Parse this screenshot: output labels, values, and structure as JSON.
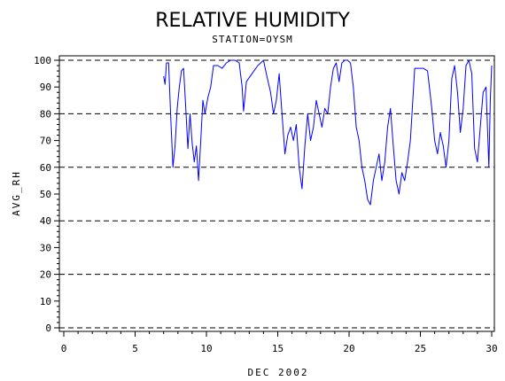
{
  "chart_data": {
    "type": "line",
    "title": "RELATIVE HUMIDITY",
    "subtitle": "STATION=OYSM",
    "xlabel": "DEC 2002",
    "ylabel": "AVG_RH",
    "xlim": [
      0,
      30
    ],
    "ylim": [
      0,
      100
    ],
    "x_ticks": [
      0,
      5,
      10,
      15,
      20,
      25,
      30
    ],
    "y_ticks": [
      0,
      10,
      20,
      30,
      40,
      50,
      60,
      70,
      80,
      90,
      100
    ],
    "grid_y": [
      0,
      20,
      40,
      60,
      80,
      100
    ],
    "grid_style": "dashed",
    "line_color": "#0000ff",
    "series": [
      {
        "values": [
          [
            7.0,
            94
          ],
          [
            7.1,
            91
          ],
          [
            7.2,
            99
          ],
          [
            7.35,
            99
          ],
          [
            7.5,
            78
          ],
          [
            7.65,
            60
          ],
          [
            7.8,
            68
          ],
          [
            7.95,
            82
          ],
          [
            8.1,
            90
          ],
          [
            8.25,
            96
          ],
          [
            8.4,
            97
          ],
          [
            8.55,
            82
          ],
          [
            8.7,
            67
          ],
          [
            8.85,
            80
          ],
          [
            9.0,
            69
          ],
          [
            9.15,
            62
          ],
          [
            9.3,
            68
          ],
          [
            9.45,
            55
          ],
          [
            9.6,
            70
          ],
          [
            9.75,
            85
          ],
          [
            9.9,
            80
          ],
          [
            10.1,
            86
          ],
          [
            10.3,
            90
          ],
          [
            10.5,
            98
          ],
          [
            10.8,
            98
          ],
          [
            11.1,
            97
          ],
          [
            11.4,
            99
          ],
          [
            11.7,
            100
          ],
          [
            12.0,
            100
          ],
          [
            12.3,
            99
          ],
          [
            12.5,
            90
          ],
          [
            12.6,
            81
          ],
          [
            12.8,
            92
          ],
          [
            13.2,
            95
          ],
          [
            13.6,
            98
          ],
          [
            14.0,
            100
          ],
          [
            14.2,
            95
          ],
          [
            14.5,
            88
          ],
          [
            14.7,
            80
          ],
          [
            14.9,
            85
          ],
          [
            15.1,
            95
          ],
          [
            15.3,
            80
          ],
          [
            15.5,
            65
          ],
          [
            15.7,
            72
          ],
          [
            15.9,
            75
          ],
          [
            16.1,
            70
          ],
          [
            16.3,
            76
          ],
          [
            16.5,
            60
          ],
          [
            16.7,
            52
          ],
          [
            16.9,
            68
          ],
          [
            17.1,
            80
          ],
          [
            17.3,
            70
          ],
          [
            17.5,
            75
          ],
          [
            17.7,
            85
          ],
          [
            17.9,
            80
          ],
          [
            18.1,
            75
          ],
          [
            18.3,
            82
          ],
          [
            18.5,
            80
          ],
          [
            18.7,
            90
          ],
          [
            18.9,
            97
          ],
          [
            19.1,
            99
          ],
          [
            19.3,
            92
          ],
          [
            19.5,
            99
          ],
          [
            19.7,
            100
          ],
          [
            19.9,
            100
          ],
          [
            20.1,
            99
          ],
          [
            20.3,
            90
          ],
          [
            20.5,
            75
          ],
          [
            20.7,
            70
          ],
          [
            20.9,
            60
          ],
          [
            21.1,
            55
          ],
          [
            21.3,
            48
          ],
          [
            21.5,
            46
          ],
          [
            21.7,
            55
          ],
          [
            21.9,
            60
          ],
          [
            22.1,
            65
          ],
          [
            22.3,
            55
          ],
          [
            22.5,
            62
          ],
          [
            22.7,
            75
          ],
          [
            22.9,
            82
          ],
          [
            23.1,
            68
          ],
          [
            23.3,
            55
          ],
          [
            23.5,
            50
          ],
          [
            23.7,
            58
          ],
          [
            23.9,
            55
          ],
          [
            24.1,
            62
          ],
          [
            24.3,
            70
          ],
          [
            24.6,
            97
          ],
          [
            24.9,
            97
          ],
          [
            25.2,
            97
          ],
          [
            25.5,
            96
          ],
          [
            25.8,
            82
          ],
          [
            26.0,
            70
          ],
          [
            26.2,
            65
          ],
          [
            26.4,
            73
          ],
          [
            26.6,
            68
          ],
          [
            26.8,
            60
          ],
          [
            27.0,
            70
          ],
          [
            27.2,
            93
          ],
          [
            27.4,
            98
          ],
          [
            27.6,
            88
          ],
          [
            27.8,
            73
          ],
          [
            28.0,
            82
          ],
          [
            28.2,
            98
          ],
          [
            28.4,
            100
          ],
          [
            28.6,
            95
          ],
          [
            28.8,
            67
          ],
          [
            29.0,
            62
          ],
          [
            29.2,
            75
          ],
          [
            29.4,
            88
          ],
          [
            29.6,
            90
          ],
          [
            29.8,
            60
          ],
          [
            29.9,
            85
          ],
          [
            30.0,
            98
          ]
        ]
      }
    ]
  }
}
